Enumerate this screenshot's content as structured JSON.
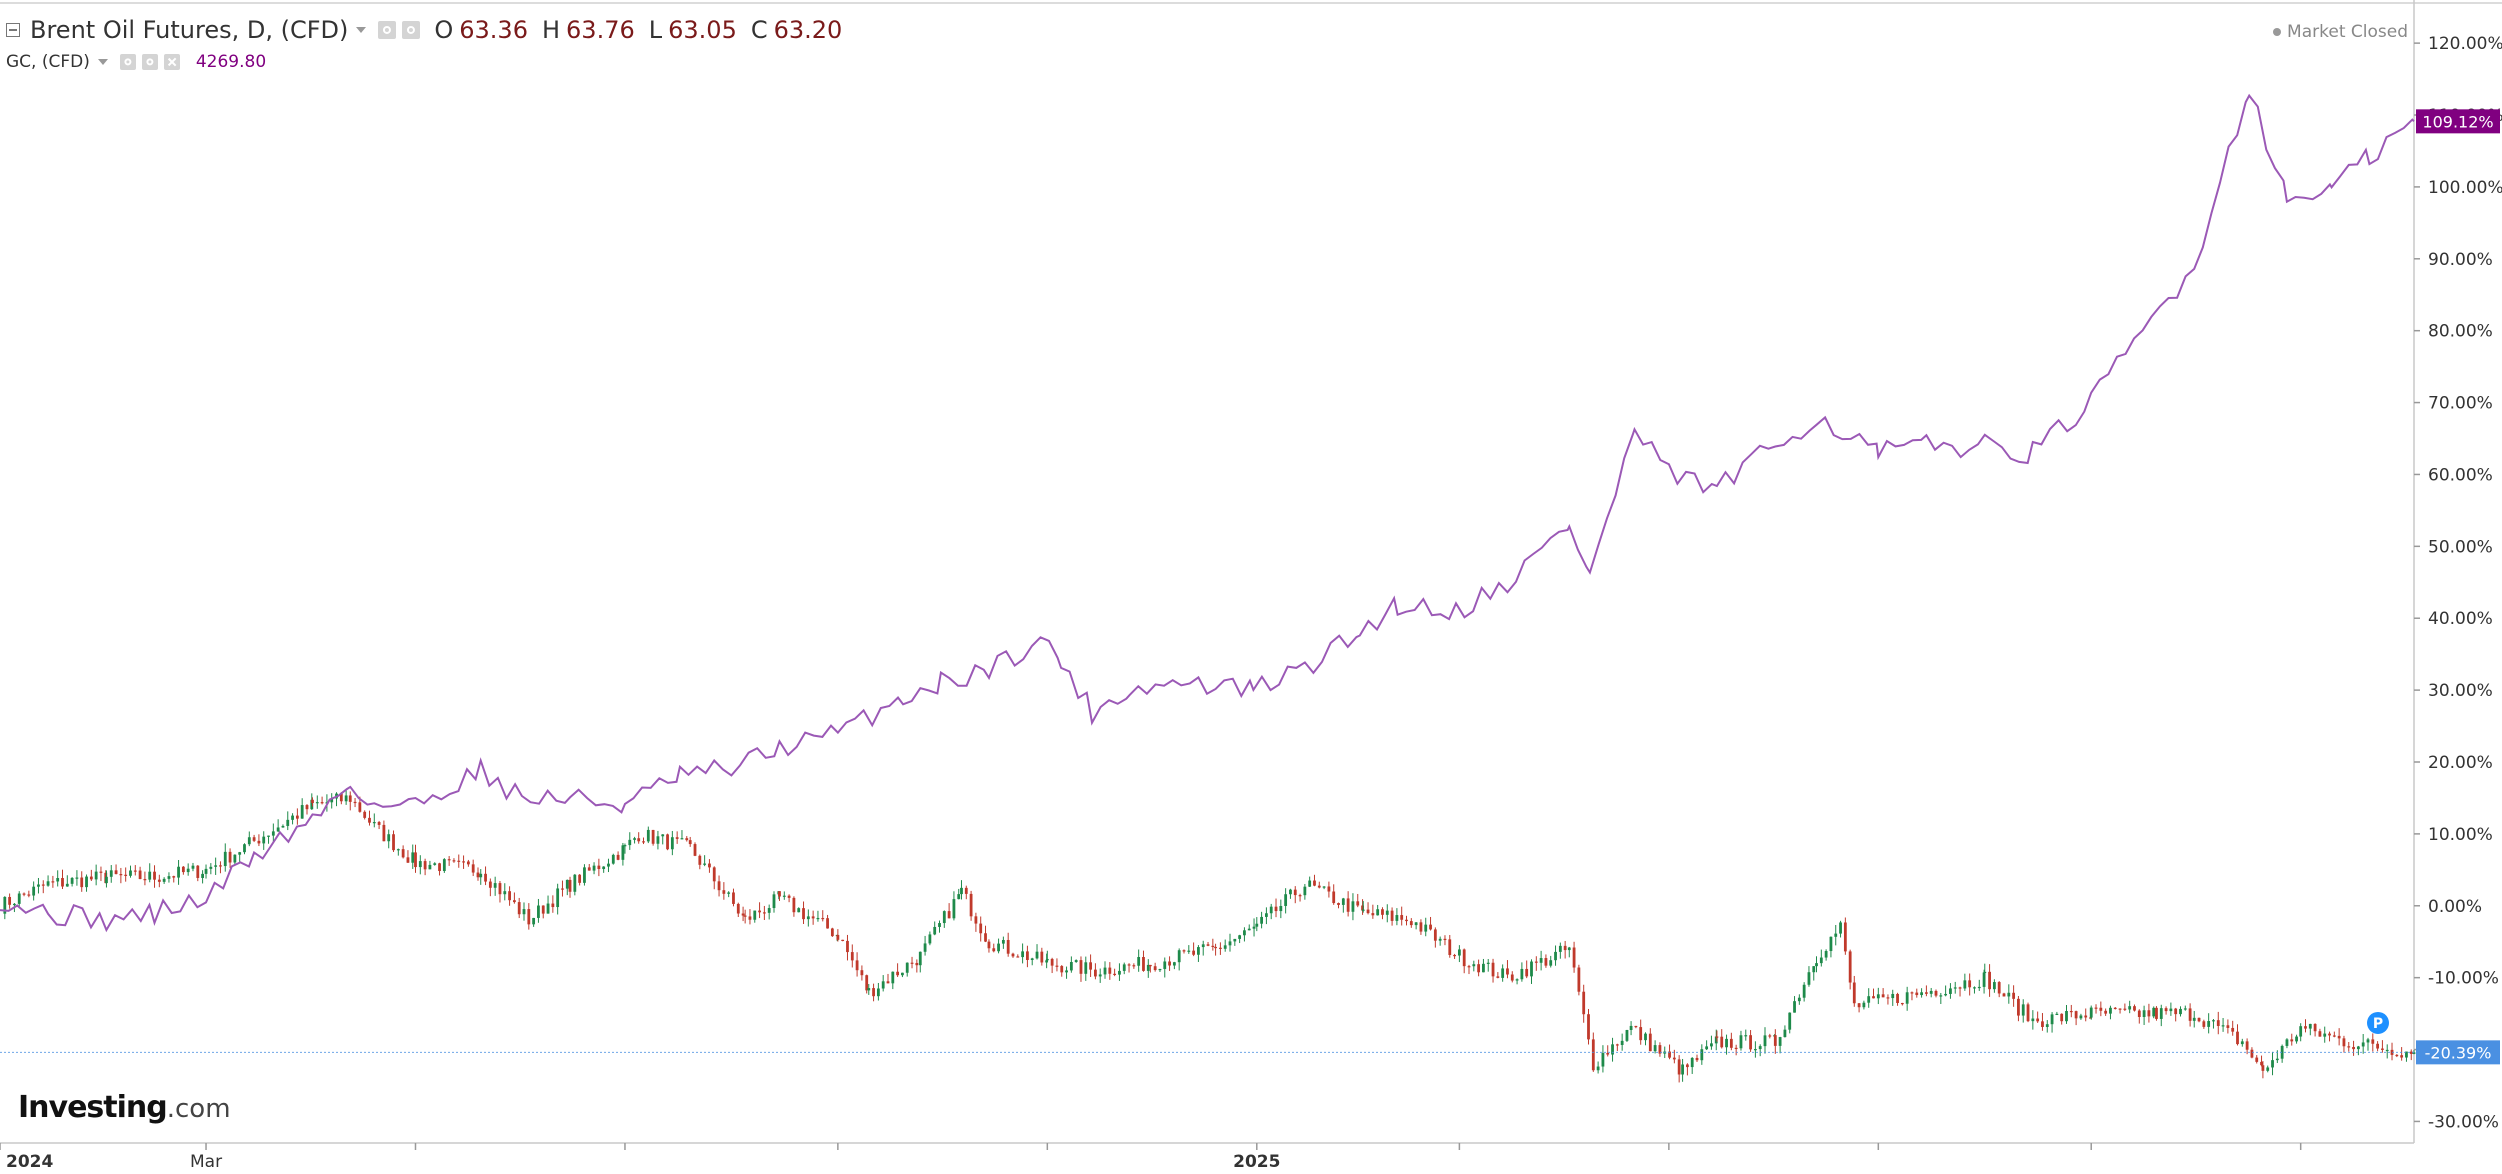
{
  "header": {
    "primary": {
      "name": "Brent Oil Futures, D, (CFD)",
      "o_label": "O",
      "o_value": "63.36",
      "h_label": "H",
      "h_value": "63.76",
      "l_label": "L",
      "l_value": "63.05",
      "c_label": "C",
      "c_value": "63.20"
    },
    "secondary": {
      "name": "GC, (CFD)",
      "value": "4269.80"
    },
    "market_status": "Market Closed"
  },
  "logo": {
    "brand": "Investing",
    "suffix": ".com"
  },
  "colors": {
    "gold_line": "#9b59b6",
    "candle_up": "#1e8a4a",
    "candle_down": "#c0392b",
    "gold_badge": "#800080",
    "brent_badge": "#4a90e2",
    "p_marker": "#1e90ff"
  },
  "markers": {
    "p_label": "P"
  },
  "chart_data": {
    "type": "line",
    "y_axis": {
      "unit": "percent change",
      "ylim": [
        -33,
        126
      ],
      "tick_labels": [
        "120.00%",
        "110.00%",
        "100.00%",
        "90.00%",
        "80.00%",
        "70.00%",
        "60.00%",
        "50.00%",
        "40.00%",
        "30.00%",
        "20.00%",
        "10.00%",
        "0.00%",
        "-10.00%",
        "-20.00%",
        "-30.00%"
      ],
      "tick_values": [
        120,
        110,
        100,
        90,
        80,
        70,
        60,
        50,
        40,
        30,
        20,
        10,
        0,
        -10,
        -20,
        -30
      ]
    },
    "x_axis": {
      "xlim": [
        "2024-01-01",
        "2025-12-04"
      ],
      "labels": [
        {
          "text": "2024",
          "date": "2024-01-01"
        },
        {
          "text": "Mar",
          "date": "2024-03-01"
        },
        {
          "text": "2025",
          "date": "2025-01-01"
        }
      ],
      "minor_ticks": [
        "2024-05-01",
        "2024-07-01",
        "2024-09-01",
        "2024-11-01",
        "2025-03-01",
        "2025-05-01",
        "2025-07-01",
        "2025-09-01",
        "2025-11-01"
      ]
    },
    "grid": false,
    "series": [
      {
        "name": "GC, (CFD)",
        "style": "line",
        "last_label": "109.12%",
        "points": [
          [
            "2024-01-01",
            1
          ],
          [
            "2024-01-15",
            -1
          ],
          [
            "2024-02-01",
            -2
          ],
          [
            "2024-02-15",
            -1
          ],
          [
            "2024-03-01",
            1
          ],
          [
            "2024-03-15",
            7
          ],
          [
            "2024-04-01",
            12
          ],
          [
            "2024-04-12",
            17
          ],
          [
            "2024-04-19",
            14
          ],
          [
            "2024-05-01",
            14
          ],
          [
            "2024-05-20",
            19
          ],
          [
            "2024-06-01",
            15
          ],
          [
            "2024-06-15",
            15
          ],
          [
            "2024-07-01",
            14
          ],
          [
            "2024-07-17",
            18
          ],
          [
            "2024-08-01",
            19
          ],
          [
            "2024-08-15",
            22
          ],
          [
            "2024-09-01",
            24
          ],
          [
            "2024-09-20",
            29
          ],
          [
            "2024-10-01",
            31
          ],
          [
            "2024-10-15",
            33
          ],
          [
            "2024-10-30",
            37
          ],
          [
            "2024-11-05",
            34
          ],
          [
            "2024-11-14",
            27
          ],
          [
            "2024-11-25",
            30
          ],
          [
            "2024-12-10",
            31
          ],
          [
            "2024-12-31",
            30
          ],
          [
            "2025-01-15",
            33
          ],
          [
            "2025-01-31",
            38
          ],
          [
            "2025-02-11",
            42
          ],
          [
            "2025-02-28",
            41
          ],
          [
            "2025-03-15",
            45
          ],
          [
            "2025-04-02",
            53
          ],
          [
            "2025-04-08",
            46
          ],
          [
            "2025-04-21",
            66
          ],
          [
            "2025-05-01",
            60
          ],
          [
            "2025-05-15",
            58
          ],
          [
            "2025-06-01",
            64
          ],
          [
            "2025-06-13",
            68
          ],
          [
            "2025-07-01",
            63
          ],
          [
            "2025-07-15",
            64
          ],
          [
            "2025-08-01",
            64
          ],
          [
            "2025-08-15",
            63
          ],
          [
            "2025-09-01",
            70
          ],
          [
            "2025-09-16",
            80
          ],
          [
            "2025-10-01",
            89
          ],
          [
            "2025-10-17",
            114
          ],
          [
            "2025-10-28",
            98
          ],
          [
            "2025-11-10",
            100
          ],
          [
            "2025-11-21",
            104
          ],
          [
            "2025-12-04",
            109.12
          ]
        ]
      },
      {
        "name": "Brent Oil Futures, D, (CFD)",
        "style": "candlestick",
        "last_label": "-20.39%",
        "points": [
          [
            "2024-01-01",
            0
          ],
          [
            "2024-01-15",
            3
          ],
          [
            "2024-02-01",
            4
          ],
          [
            "2024-02-15",
            4
          ],
          [
            "2024-03-01",
            5
          ],
          [
            "2024-03-15",
            9
          ],
          [
            "2024-04-01",
            14
          ],
          [
            "2024-04-12",
            15
          ],
          [
            "2024-04-19",
            11
          ],
          [
            "2024-05-01",
            6
          ],
          [
            "2024-05-20",
            5
          ],
          [
            "2024-06-03",
            -2
          ],
          [
            "2024-06-15",
            3
          ],
          [
            "2024-07-01",
            8
          ],
          [
            "2024-07-05",
            10
          ],
          [
            "2024-07-20",
            8
          ],
          [
            "2024-08-05",
            -2
          ],
          [
            "2024-08-15",
            1
          ],
          [
            "2024-09-01",
            -4
          ],
          [
            "2024-09-10",
            -12
          ],
          [
            "2024-09-25",
            -7
          ],
          [
            "2024-10-07",
            2
          ],
          [
            "2024-10-15",
            -5
          ],
          [
            "2024-11-01",
            -8
          ],
          [
            "2024-11-15",
            -9
          ],
          [
            "2024-12-01",
            -8
          ],
          [
            "2024-12-20",
            -6
          ],
          [
            "2025-01-01",
            -3
          ],
          [
            "2025-01-15",
            3
          ],
          [
            "2025-02-01",
            -1
          ],
          [
            "2025-02-15",
            -2
          ],
          [
            "2025-03-01",
            -7
          ],
          [
            "2025-03-15",
            -10
          ],
          [
            "2025-04-02",
            -6
          ],
          [
            "2025-04-09",
            -22
          ],
          [
            "2025-04-20",
            -17
          ],
          [
            "2025-05-05",
            -23
          ],
          [
            "2025-05-15",
            -19
          ],
          [
            "2025-06-01",
            -19
          ],
          [
            "2025-06-13",
            -7
          ],
          [
            "2025-06-20",
            -3
          ],
          [
            "2025-06-24",
            -14
          ],
          [
            "2025-07-15",
            -12
          ],
          [
            "2025-08-01",
            -10
          ],
          [
            "2025-08-15",
            -16
          ],
          [
            "2025-09-01",
            -15
          ],
          [
            "2025-09-20",
            -15
          ],
          [
            "2025-10-01",
            -15
          ],
          [
            "2025-10-15",
            -19
          ],
          [
            "2025-10-21",
            -23
          ],
          [
            "2025-11-01",
            -17
          ],
          [
            "2025-11-15",
            -19
          ],
          [
            "2025-12-04",
            -20.39
          ]
        ]
      }
    ]
  }
}
